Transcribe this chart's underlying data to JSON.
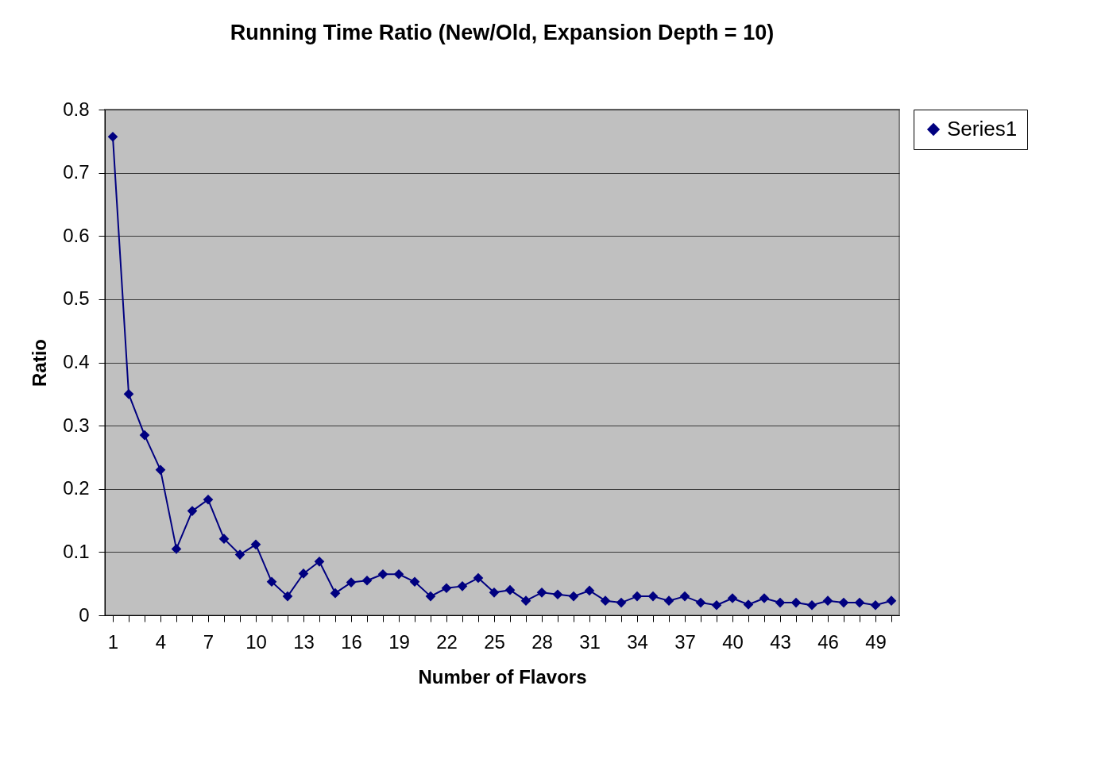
{
  "chart_data": {
    "type": "line",
    "title": "Running Time Ratio (New/Old, Expansion Depth = 10)",
    "xlabel": "Number of Flavors",
    "ylabel": "Ratio",
    "categories": [
      "1",
      null,
      null,
      "4",
      null,
      null,
      "7",
      null,
      null,
      "10",
      null,
      null,
      "13",
      null,
      null,
      "16",
      null,
      null,
      "19",
      null,
      null,
      "22",
      null,
      null,
      "25",
      null,
      null,
      "28",
      null,
      null,
      "31",
      null,
      null,
      "34",
      null,
      null,
      "37",
      null,
      null,
      "40",
      null,
      null,
      "43",
      null,
      null,
      "46",
      null,
      null,
      "49",
      null
    ],
    "series": [
      {
        "name": "Series1",
        "color": "#000080",
        "values": [
          0.757,
          0.35,
          0.285,
          0.23,
          0.105,
          0.165,
          0.183,
          0.121,
          0.096,
          0.112,
          0.053,
          0.03,
          0.066,
          0.085,
          0.035,
          0.052,
          0.055,
          0.065,
          0.065,
          0.053,
          0.03,
          0.043,
          0.046,
          0.059,
          0.036,
          0.04,
          0.023,
          0.036,
          0.033,
          0.03,
          0.039,
          0.023,
          0.02,
          0.03,
          0.03,
          0.023,
          0.03,
          0.02,
          0.016,
          0.027,
          0.017,
          0.027,
          0.02,
          0.02,
          0.016,
          0.023,
          0.02,
          0.02,
          0.016,
          0.023
        ]
      }
    ],
    "ylim": [
      0,
      0.8
    ],
    "yticks": [
      0,
      0.1,
      0.2,
      0.3,
      0.4,
      0.5,
      0.6,
      0.7,
      0.8
    ],
    "grid": "y",
    "legend": "right",
    "marker": "diamond",
    "line_style": "solid"
  }
}
